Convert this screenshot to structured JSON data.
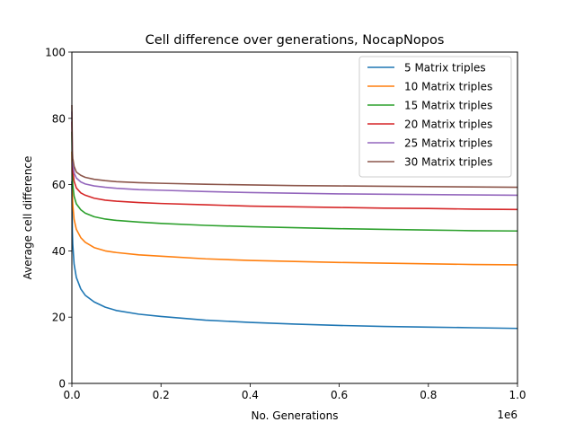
{
  "chart_data": {
    "type": "line",
    "title": "Cell difference over generations, NocapNopos",
    "xlabel": "No. Generations",
    "ylabel": "Average cell difference",
    "x_offset_label": "1e6",
    "xlim": [
      0,
      1000000
    ],
    "ylim": [
      0,
      100
    ],
    "x_ticks": [
      0,
      200000,
      400000,
      600000,
      800000,
      1000000
    ],
    "x_tick_labels": [
      "0.0",
      "0.2",
      "0.4",
      "0.6",
      "0.8",
      "1.0"
    ],
    "y_ticks": [
      0,
      20,
      40,
      60,
      80,
      100
    ],
    "y_tick_labels": [
      "0",
      "20",
      "40",
      "60",
      "80",
      "100"
    ],
    "grid": false,
    "legend_position": "top-right",
    "x": [
      0,
      1000,
      2000,
      5000,
      10000,
      20000,
      30000,
      50000,
      75000,
      100000,
      150000,
      200000,
      300000,
      400000,
      500000,
      600000,
      700000,
      800000,
      900000,
      1000000
    ],
    "series": [
      {
        "name": "5 Matrix triples",
        "color": "#1f77b4",
        "values": [
          61,
          46,
          42,
          36,
          32,
          28.5,
          26.6,
          24.6,
          23,
          22,
          20.9,
          20.2,
          19.1,
          18.4,
          17.9,
          17.5,
          17.2,
          17,
          16.8,
          16.6
        ]
      },
      {
        "name": "10 Matrix triples",
        "color": "#ff7f0e",
        "values": [
          70,
          57,
          54,
          49.5,
          46.5,
          44,
          42.6,
          41,
          40,
          39.5,
          38.8,
          38.4,
          37.6,
          37.1,
          36.8,
          36.5,
          36.3,
          36.1,
          35.9,
          35.8
        ]
      },
      {
        "name": "15 Matrix triples",
        "color": "#2ca02c",
        "values": [
          76,
          63,
          60,
          56.5,
          54.2,
          52.4,
          51.4,
          50.3,
          49.6,
          49.2,
          48.7,
          48.3,
          47.7,
          47.3,
          47,
          46.7,
          46.5,
          46.3,
          46.1,
          46
        ]
      },
      {
        "name": "20 Matrix triples",
        "color": "#d62728",
        "values": [
          79,
          67,
          64.5,
          61,
          59,
          57.5,
          56.8,
          55.9,
          55.3,
          55,
          54.6,
          54.3,
          53.9,
          53.5,
          53.3,
          53.1,
          52.9,
          52.8,
          52.6,
          52.5
        ]
      },
      {
        "name": "25 Matrix triples",
        "color": "#9467bd",
        "values": [
          82,
          69,
          66.5,
          63.5,
          62,
          60.8,
          60.2,
          59.6,
          59.2,
          58.9,
          58.5,
          58.3,
          57.9,
          57.6,
          57.4,
          57.2,
          57.1,
          57,
          56.9,
          56.8
        ]
      },
      {
        "name": "30 Matrix triples",
        "color": "#8c564b",
        "values": [
          84,
          70.5,
          68,
          65.5,
          63.8,
          62.8,
          62.2,
          61.6,
          61.2,
          60.9,
          60.6,
          60.4,
          60.1,
          59.9,
          59.7,
          59.6,
          59.5,
          59.4,
          59.3,
          59.2
        ]
      }
    ]
  }
}
